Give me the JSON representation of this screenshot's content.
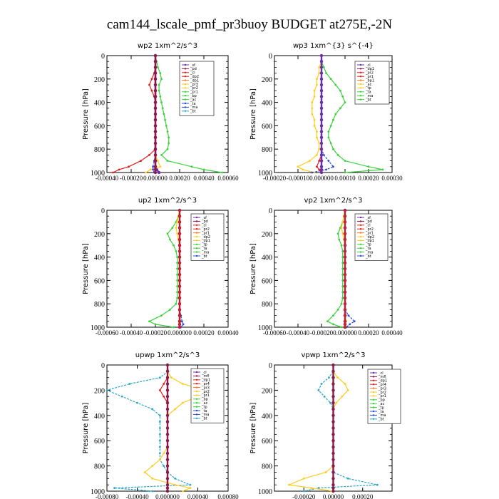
{
  "figure": {
    "title": "cam144_lscale_pmf_pr3buoy  BUDGET at275E,-2N"
  },
  "chart_data": [
    {
      "id": "wp2",
      "type": "line",
      "title": "wp2   1xm^2/s^3",
      "ylabel": "Pressure [hPa]",
      "ylim": [
        1000,
        0
      ],
      "yticks": [
        "0",
        "200",
        "400",
        "600",
        "800",
        "1000"
      ],
      "xlim": [
        -0.0004,
        0.0006
      ],
      "xticks": [
        "-0.00040",
        "-0.00020",
        "0.000000",
        "0.00020",
        "0.00040",
        "0.00060"
      ],
      "xtick_values": [
        -0.0004,
        -0.0002,
        0,
        0.0002,
        0.0004,
        0.0006
      ],
      "legend": [
        "_sf",
        "_pd",
        "_cl",
        "_dp2",
        "_dp1",
        "_pr3",
        "_pr2",
        "_pr1",
        "_bp",
        "_ac",
        "_ta",
        "_ma",
        "_bt"
      ],
      "series": [
        {
          "color": "#6a2fa8",
          "values": [
            0,
            0,
            0,
            0,
            0,
            0,
            0,
            0,
            0,
            0,
            0,
            0,
            0,
            0,
            0,
            0,
            0,
            0,
            0,
            0,
            1e-05,
            3e-05
          ]
        },
        {
          "color": "#e0201c",
          "values": [
            0,
            0,
            0,
            -1e-05,
            -3e-05,
            -5e-05,
            -3e-05,
            -1e-05,
            0,
            0,
            0,
            0,
            0,
            0,
            0,
            0,
            0,
            -5e-05,
            -0.00012,
            -0.00022,
            -0.0003,
            -0.00035
          ]
        },
        {
          "color": "#ffcc22",
          "values": [
            0,
            0,
            0,
            0,
            0,
            0,
            0,
            0,
            0,
            0,
            0,
            0,
            0,
            0,
            0,
            0,
            0,
            0,
            2e-05,
            4e-05,
            -4e-05,
            -8e-05
          ]
        },
        {
          "color": "#3cd13c",
          "values": [
            0,
            1e-05,
            2e-05,
            4e-05,
            5e-05,
            3e-05,
            3e-05,
            4e-05,
            5e-05,
            6e-05,
            7e-05,
            8e-05,
            9e-05,
            0.0001,
            0.00011,
            0.00011,
            0.0001,
            5e-05,
            0.0001,
            0.0003,
            0.0004,
            0.00055
          ]
        },
        {
          "color": "#2c4bd8",
          "values": [
            0,
            0,
            0,
            0,
            0,
            0,
            0,
            0,
            0,
            0,
            0,
            0,
            0,
            0,
            0,
            0,
            0,
            0,
            -1e-05,
            -2e-05,
            -2e-05,
            -1e-05
          ]
        },
        {
          "color": "#8b1a4a",
          "values": [
            0,
            0,
            0,
            0,
            0,
            0,
            0,
            0,
            0,
            0,
            0,
            0,
            0,
            0,
            0,
            0,
            0,
            0,
            0,
            0,
            0,
            0
          ]
        }
      ]
    },
    {
      "id": "wp3",
      "type": "line",
      "title": "wp3   1xm^{3} s^{-4}",
      "ylabel": "Pressure [hPa]",
      "ylim": [
        1000,
        0
      ],
      "yticks": [
        "0",
        "200",
        "400",
        "600",
        "800",
        "1000"
      ],
      "xlim": [
        -0.0002,
        0.0003
      ],
      "xticks": [
        "-0.00020",
        "-0.00010",
        "0.000000",
        "0.00010",
        "0.00020",
        "0.00030"
      ],
      "xtick_values": [
        -0.0002,
        -0.0001,
        0,
        0.0001,
        0.0002,
        0.0003
      ],
      "legend": [
        "_cl",
        "_dp1",
        "_pr2",
        "_pr1",
        "_bp1",
        "_ac",
        "_tp",
        "_ta",
        "_ma",
        "_bt"
      ],
      "series": [
        {
          "color": "#3cd13c",
          "values": [
            0,
            0,
            1e-05,
            2e-05,
            4e-05,
            6e-05,
            8e-05,
            9e-05,
            0.0001,
            8e-05,
            6e-05,
            5e-05,
            4e-05,
            3e-05,
            3e-05,
            4e-05,
            5e-05,
            7e-05,
            0.0001,
            0.0002,
            0.00026,
            0.0001
          ]
        },
        {
          "color": "#ffcc22",
          "values": [
            0,
            0,
            -1e-05,
            -1e-05,
            -2e-05,
            -2e-05,
            -3e-05,
            -3e-05,
            -4e-05,
            -4e-05,
            -4e-05,
            -3e-05,
            -3e-05,
            -2e-05,
            -2e-05,
            -1e-05,
            -1e-05,
            -2e-05,
            -5e-05,
            -0.0001,
            -8e-05,
            -3e-05
          ]
        },
        {
          "color": "#2c4bd8",
          "values": [
            0,
            0,
            0,
            0,
            0,
            0,
            0,
            0,
            0,
            0,
            0,
            0,
            0,
            0,
            0,
            0,
            0,
            1e-05,
            3e-05,
            5e-05,
            2e-05,
            -4e-05
          ]
        },
        {
          "color": "#e0201c",
          "values": [
            0,
            0,
            0,
            0,
            0,
            0,
            0,
            0,
            0,
            0,
            0,
            0,
            0,
            0,
            0,
            0,
            0,
            0,
            -1e-05,
            -2e-05,
            -1e-05,
            0
          ]
        },
        {
          "color": "#6a2fa8",
          "values": [
            0,
            0,
            0,
            0,
            0,
            0,
            0,
            0,
            0,
            0,
            0,
            0,
            0,
            0,
            0,
            0,
            0,
            0,
            0,
            0,
            0,
            0
          ]
        }
      ]
    },
    {
      "id": "up2",
      "type": "line",
      "title": "up2   1xm^2/s^3",
      "ylabel": "Pressure [hPa]",
      "ylim": [
        1000,
        0
      ],
      "yticks": [
        "0",
        "200",
        "400",
        "600",
        "800",
        "1000"
      ],
      "xlim": [
        -0.0006,
        0.0004
      ],
      "xticks": [
        "-0.00060",
        "-0.00040",
        "-0.00020",
        "0.000000",
        "0.00020",
        "0.00040"
      ],
      "xtick_values": [
        -0.0006,
        -0.0004,
        -0.0002,
        0,
        0.0002,
        0.0004
      ],
      "legend": [
        "_sf",
        "_pd",
        "_cl",
        "_pr2",
        "_pr1",
        "_dp2",
        "_dp1",
        "_tp",
        "_ta",
        "_ma",
        "_bt"
      ],
      "series": [
        {
          "color": "#3cd13c",
          "values": [
            0,
            -1e-05,
            -3e-05,
            -6e-05,
            -0.0001,
            -8e-05,
            -5e-05,
            -3e-05,
            -2e-05,
            -2e-05,
            -2e-05,
            -2e-05,
            -2e-05,
            -2e-05,
            -2e-05,
            -2e-05,
            -3e-05,
            -8e-05,
            -0.00015,
            -0.00025,
            -0.0002,
            -5e-05
          ]
        },
        {
          "color": "#ffcc22",
          "values": [
            0,
            -1e-05,
            -2e-05,
            -3e-05,
            -2e-05,
            -1e-05,
            0,
            0,
            0,
            0,
            0,
            0,
            0,
            0,
            0,
            0,
            0,
            0,
            0,
            1e-05,
            0,
            0
          ]
        },
        {
          "color": "#2c4bd8",
          "values": [
            0,
            0,
            0,
            0,
            0,
            0,
            0,
            0,
            0,
            0,
            0,
            0,
            0,
            0,
            0,
            0,
            0,
            0,
            1e-05,
            2e-05,
            3e-05,
            1e-05
          ]
        },
        {
          "color": "#8b1a4a",
          "values": [
            0,
            0,
            0,
            0,
            0,
            0,
            0,
            0,
            0,
            0,
            0,
            0,
            0,
            0,
            0,
            0,
            0,
            0,
            0,
            0,
            0,
            0
          ]
        },
        {
          "color": "#e0201c",
          "values": [
            0,
            0,
            0,
            0,
            0,
            0,
            0,
            0,
            0,
            0,
            0,
            0,
            0,
            0,
            0,
            0,
            0,
            0,
            0,
            0,
            0,
            0
          ]
        }
      ]
    },
    {
      "id": "vp2",
      "type": "line",
      "title": "vp2   1xm^2/s^3",
      "ylabel": "Pressure [hPa]",
      "ylim": [
        1000,
        0
      ],
      "yticks": [
        "0",
        "200",
        "400",
        "600",
        "800",
        "1000"
      ],
      "xlim": [
        -0.0006,
        0.0004
      ],
      "xticks": [
        "-0.00060",
        "-0.00040",
        "-0.00020",
        "0.000000",
        "0.00020",
        "0.00040"
      ],
      "xtick_values": [
        -0.0006,
        -0.0004,
        -0.0002,
        0,
        0.0002,
        0.0004
      ],
      "legend": [
        "_sf",
        "_pd",
        "_cl",
        "_pr2",
        "_pr1",
        "_dp2",
        "_dp1",
        "_tp",
        "_ta",
        "_ma",
        "_bt"
      ],
      "series": [
        {
          "color": "#3cd13c",
          "values": [
            0,
            -1e-05,
            -2e-05,
            -4e-05,
            -6e-05,
            -5e-05,
            -3e-05,
            -2e-05,
            -2e-05,
            -2e-05,
            -2e-05,
            -2e-05,
            -2e-05,
            -2e-05,
            -2e-05,
            -2e-05,
            -3e-05,
            -6e-05,
            -0.0001,
            -0.00015,
            -0.0001,
            -3e-05
          ]
        },
        {
          "color": "#ffcc22",
          "values": [
            0,
            -1e-05,
            -2e-05,
            -3e-05,
            -2e-05,
            -1e-05,
            0,
            0,
            0,
            0,
            0,
            0,
            0,
            0,
            0,
            0,
            0,
            0,
            0,
            1e-05,
            0,
            0
          ]
        },
        {
          "color": "#2c4bd8",
          "values": [
            0,
            0,
            0,
            0,
            0,
            0,
            0,
            0,
            0,
            0,
            0,
            0,
            0,
            0,
            0,
            0,
            0,
            0,
            3e-05,
            8e-05,
            4e-05,
            1e-05
          ]
        },
        {
          "color": "#8b1a4a",
          "values": [
            0,
            0,
            0,
            0,
            0,
            0,
            0,
            0,
            0,
            0,
            0,
            0,
            0,
            0,
            0,
            0,
            0,
            0,
            0,
            0,
            0,
            0
          ]
        },
        {
          "color": "#e0201c",
          "values": [
            0,
            0,
            0,
            0,
            0,
            0,
            0,
            0,
            0,
            0,
            0,
            0,
            0,
            0,
            0,
            0,
            0,
            0,
            0,
            0,
            0,
            0
          ]
        }
      ]
    },
    {
      "id": "upwp",
      "type": "line",
      "title": "upwp   1xm^2/s^3",
      "ylabel": "Pressure [hPa]",
      "ylim": [
        1000,
        0
      ],
      "yticks": [
        "0",
        "200",
        "400",
        "600",
        "800",
        "1000"
      ],
      "xlim": [
        -0.0008,
        0.0008
      ],
      "xticks": [
        "-0.00080",
        "-0.00040",
        "0.000000",
        "0.00040",
        "0.00080"
      ],
      "xtick_values": [
        -0.0008,
        -0.0004,
        0,
        0.0004,
        0.0008
      ],
      "legend": [
        "_cl",
        "_mfl",
        "_dp1",
        "_pr4",
        "_pr3",
        "_pr2",
        "_pr1",
        "_bp",
        "_ac",
        "_tp",
        "_ta",
        "_ma",
        "_bt"
      ],
      "series": [
        {
          "color": "#2aa6c8",
          "values": [
            0,
            1e-05,
            -0.0001,
            -0.0005,
            -0.0008,
            -0.0006,
            -0.0004,
            -0.0002,
            -0.0001,
            -0.0001,
            -0.0001,
            -0.0001,
            -0.0001,
            -0.0001,
            -0.0001,
            -0.0001,
            -5e-05,
            0,
            0.0001,
            0.0003,
            -0.0007,
            -0.0002
          ]
        },
        {
          "color": "#ffcc22",
          "values": [
            0,
            0,
            5e-05,
            0.0002,
            0.0005,
            0.0004,
            0.0002,
            0.0001,
            0,
            0,
            0,
            0,
            0,
            0,
            -5e-05,
            -0.0001,
            -0.0002,
            -0.0003,
            -0.0002,
            0.0001,
            0.0003,
            0.0002
          ]
        },
        {
          "color": "#e0201c",
          "values": [
            0,
            0,
            0,
            -5e-05,
            -0.0001,
            -5e-05,
            0,
            0,
            0,
            0,
            0,
            0,
            0,
            0,
            0,
            0,
            0,
            0,
            0,
            0,
            0,
            0
          ]
        },
        {
          "color": "#8b1a4a",
          "values": [
            0,
            0,
            0,
            0,
            0,
            0,
            0,
            0,
            0,
            0,
            0,
            0,
            0,
            0,
            0,
            0,
            0,
            0,
            0,
            0,
            0,
            0
          ]
        }
      ]
    },
    {
      "id": "vpwp",
      "type": "line",
      "title": "vpwp   1xm^2/s^3",
      "ylabel": "Pressure [hPa]",
      "ylim": [
        1000,
        0
      ],
      "yticks": [
        "0",
        "200",
        "400",
        "600",
        "800",
        "1000"
      ],
      "xlim": [
        -0.0004,
        0.0004
      ],
      "xticks": [
        "-0.00020",
        "0.00000",
        "0.00020"
      ],
      "xtick_values": [
        -0.0002,
        0,
        0.0002
      ],
      "legend": [
        "_cl",
        "_mfl",
        "_dp1",
        "_pr4",
        "_pr3",
        "_pr2",
        "_pr1",
        "_bp",
        "_ac",
        "_tp",
        "_ta",
        "_ma",
        "_bt"
      ],
      "series": [
        {
          "color": "#2aa6c8",
          "values": [
            0,
            0,
            -3e-05,
            -8e-05,
            -0.0001,
            -6e-05,
            -2e-05,
            0,
            0,
            0,
            0,
            0,
            0,
            0,
            0,
            0,
            0,
            0,
            0.0001,
            0.0003,
            -0.0001,
            -0.0002
          ]
        },
        {
          "color": "#ffcc22",
          "values": [
            0,
            0,
            3e-05,
            8e-05,
            0.0001,
            6e-05,
            2e-05,
            0,
            0,
            0,
            0,
            0,
            0,
            0,
            0,
            0,
            0,
            -5e-05,
            -0.0002,
            -0.0003,
            -0.00015,
            0
          ]
        },
        {
          "color": "#8b1a4a",
          "values": [
            0,
            0,
            0,
            0,
            0,
            0,
            0,
            0,
            0,
            0,
            0,
            0,
            0,
            0,
            0,
            0,
            0,
            0,
            0,
            0,
            0,
            0
          ]
        }
      ]
    }
  ],
  "levels": [
    0,
    50,
    100,
    150,
    200,
    250,
    300,
    350,
    400,
    450,
    500,
    550,
    600,
    650,
    700,
    750,
    800,
    850,
    900,
    950,
    975,
    1000
  ]
}
